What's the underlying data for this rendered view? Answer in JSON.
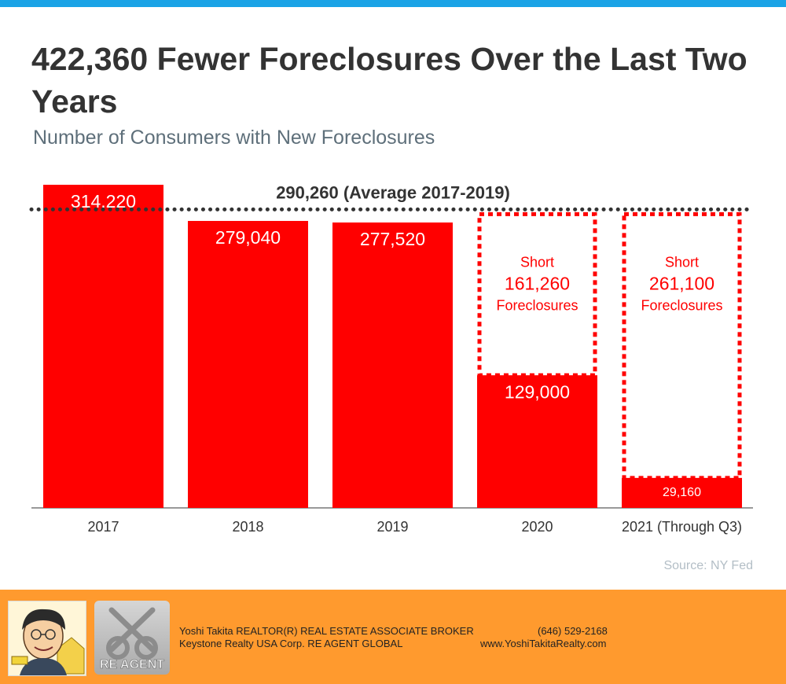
{
  "title": "422,360 Fewer Foreclosures Over the Last Two Years",
  "subtitle": "Number of Consumers with New Foreclosures",
  "source": "Source: NY Fed",
  "colors": {
    "bar": "#ff0000",
    "top_bar": "#1aa3e6",
    "footer": "#ff9a2e",
    "average_line": "#333333"
  },
  "chart_data": {
    "type": "bar",
    "categories": [
      "2017",
      "2018",
      "2019",
      "2020",
      "2021 (Through Q3)"
    ],
    "values": [
      314220,
      279040,
      277520,
      129000,
      29160
    ],
    "value_labels": [
      "314,220",
      "279,040",
      "277,520",
      "129,000",
      "29,160"
    ],
    "ylim": [
      0,
      314220
    ],
    "grid": false,
    "reference_line": {
      "value": 290260,
      "label": "290,260 (Average 2017-2019)"
    },
    "shortfalls": [
      {
        "category": "2020",
        "top_line": "Short",
        "amount": "161,260",
        "bottom_line": "Foreclosures"
      },
      {
        "category": "2021 (Through Q3)",
        "top_line": "Short",
        "amount": "261,100",
        "bottom_line": "Foreclosures"
      }
    ]
  },
  "footer": {
    "agent_line": "Yoshi Takita REALTOR(R) REAL ESTATE ASSOCIATE BROKER",
    "company_line": "Keystone Realty USA Corp.  RE AGENT GLOBAL",
    "phone": "(646) 529-2168",
    "website": "www.YoshiTakitaRealty.com",
    "logo_text": "RE AGENT",
    "portrait_icon": "caricature-portrait-icon",
    "logo_icon": "crossed-keys-icon"
  }
}
